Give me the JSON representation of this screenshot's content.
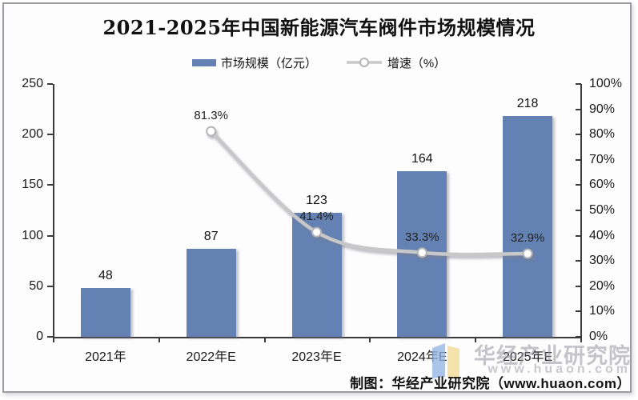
{
  "title": "2021-2025年中国新能源汽车阀件市场规模情况",
  "legend": [
    {
      "label": "市场规模（亿元）",
      "swatch": "bar"
    },
    {
      "label": "增速（%）",
      "swatch": "line"
    }
  ],
  "chart_data": {
    "type": "bar+line",
    "categories": [
      "2021年",
      "2022年E",
      "2023年E",
      "2024年E",
      "2025年E"
    ],
    "series": [
      {
        "name": "市场规模（亿元）",
        "type": "bar",
        "axis": "left",
        "values": [
          48,
          87,
          123,
          164,
          218
        ],
        "labels": [
          "48",
          "87",
          "123",
          "164",
          "218"
        ]
      },
      {
        "name": "增速（%）",
        "type": "line",
        "axis": "right",
        "values": [
          null,
          81.3,
          41.4,
          33.3,
          32.9
        ],
        "labels": [
          "",
          "81.3%",
          "41.4%",
          "33.3%",
          "32.9%"
        ]
      }
    ],
    "left_axis": {
      "min": 0,
      "max": 250,
      "step": 50,
      "ticks": [
        "0",
        "50",
        "100",
        "150",
        "200",
        "250"
      ]
    },
    "right_axis": {
      "min": 0,
      "max": 100,
      "step": 10,
      "ticks": [
        "0%",
        "10%",
        "20%",
        "30%",
        "40%",
        "50%",
        "60%",
        "70%",
        "80%",
        "90%",
        "100%"
      ]
    },
    "grid": false,
    "legend_position": "top"
  },
  "footer": {
    "credit": "制图：华经产业研究院（www.huaon.com）"
  },
  "watermark": {
    "brand": "华经产业研究院",
    "url": "www.huaon.com",
    "logo": "huajing-logo"
  },
  "colors": {
    "bar": "#6381B2",
    "line": "#C8C8C8",
    "marker_fill": "#FFFFFF",
    "marker_stroke": "#B5B5B5",
    "axis": "#3A3A3A",
    "title": "#111111",
    "frame": "#9B9BA3",
    "watermark_blue": "#8FB3E3",
    "watermark_yellow": "#F2D98E"
  }
}
